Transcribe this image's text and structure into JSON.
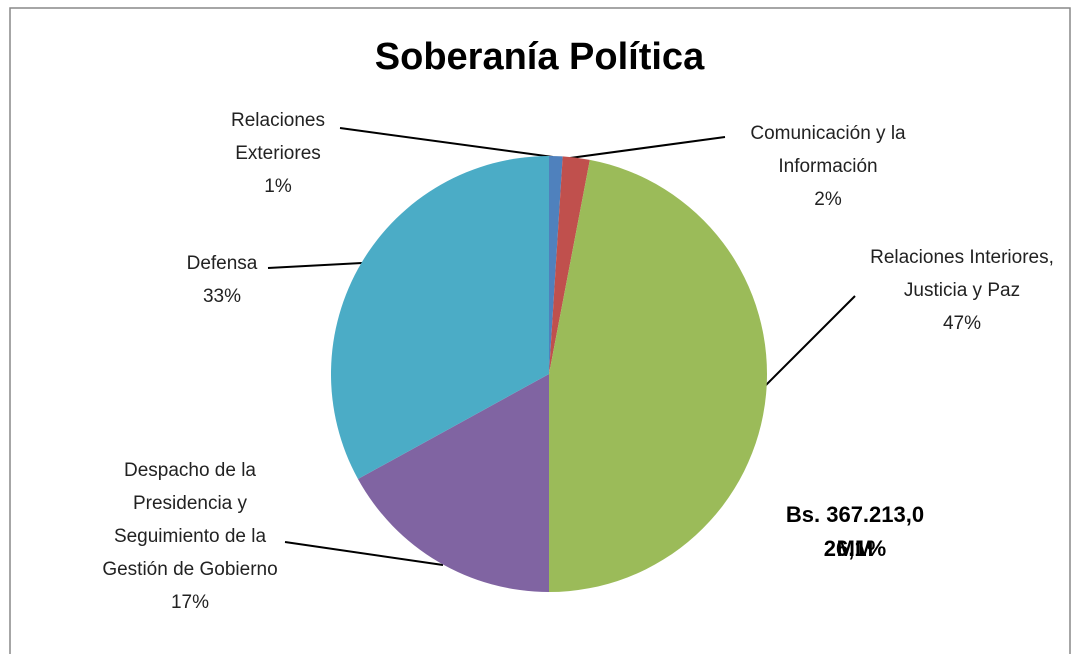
{
  "chart_data": {
    "type": "pie",
    "title": "Soberanía Política",
    "categories": [
      "Relaciones Exteriores",
      "Comunicación y la Información",
      "Relaciones Interiores, Justicia y Paz",
      "Despacho de la Presidencia y Seguimiento de la Gestión de Gobierno",
      "Defensa"
    ],
    "values": [
      1,
      2,
      47,
      17,
      33
    ],
    "value_labels": [
      "1%",
      "2%",
      "47%",
      "17%",
      "33%"
    ],
    "colors": [
      "#4f81bd",
      "#c0504d",
      "#9bbb59",
      "#8064a2",
      "#4bacc6"
    ],
    "annotations": [
      "Bs. 367.213,0 MM",
      "26,1%"
    ]
  }
}
